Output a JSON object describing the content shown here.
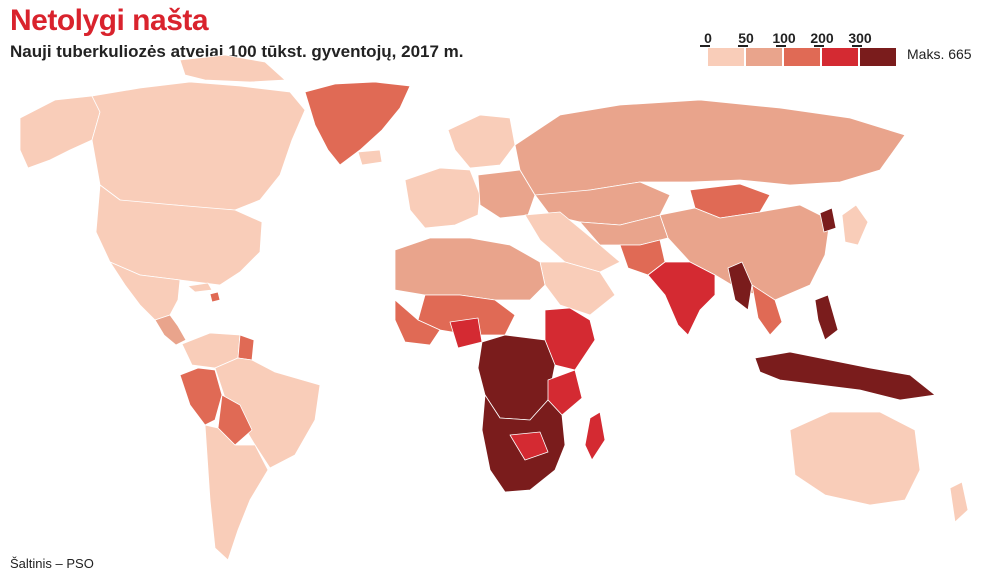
{
  "title": "Netolygi našta",
  "subtitle": "Nauji tuberkuliozės atvejai 100 tūkst. gyventojų, 2017 m.",
  "source": "Šaltinis – PSO",
  "legend": {
    "ticks": [
      "0",
      "50",
      "100",
      "200",
      "300"
    ],
    "max_label": "Maks. 665",
    "colors": [
      "#f9cdb9",
      "#e9a48c",
      "#e06a55",
      "#d42a32",
      "#7a1c1c"
    ]
  },
  "colors": {
    "title_red": "#d9232d",
    "no_data": "#ffffff"
  }
}
